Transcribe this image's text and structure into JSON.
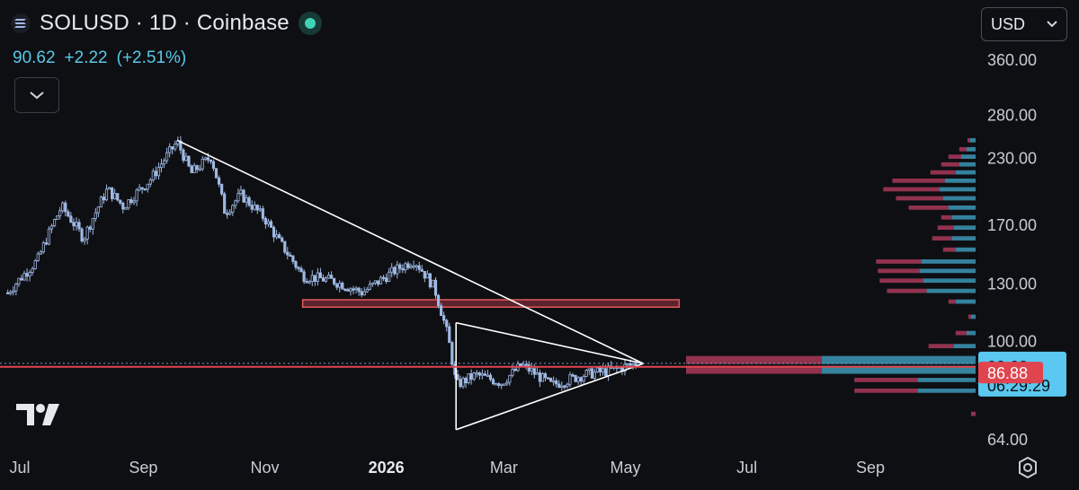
{
  "header": {
    "title": "SOLUSD · 1D · Coinbase",
    "price": "90.62",
    "change": "+2.22",
    "change_pct": "(+2.51%)",
    "currency": "USD"
  },
  "price_badges": {
    "current_price": "90.62",
    "countdown": "06:29:29",
    "level_price": "86.88"
  },
  "colors": {
    "background": "#0e0f13",
    "candle": "#9fb8e3",
    "accent_blue": "#5ac8e8",
    "level_red": "#e0454f",
    "zone_red": "#c0394f",
    "vp_red": "#a8385a",
    "vp_teal": "#3a8fae",
    "trendline": "#ffffff"
  },
  "icons": [
    "solana-icon",
    "status-dot-icon",
    "chevron-down-icon",
    "tradingview-logo-icon",
    "settings-gear-icon"
  ],
  "chart_data": {
    "type": "candlestick",
    "symbol": "SOLUSD",
    "interval": "1D",
    "exchange": "Coinbase",
    "y_scale": "log",
    "ylim": [
      62,
      380
    ],
    "y_ticks": [
      "360.00",
      "280.00",
      "230.00",
      "170.00",
      "130.00",
      "100.00",
      "64.00"
    ],
    "x_ticks": [
      "Jul",
      "Sep",
      "Nov",
      "2026",
      "Mar",
      "May",
      "Jul",
      "Sep"
    ],
    "x_tick_months": [
      "2025-07",
      "2025-09",
      "2025-11",
      "2026-01",
      "2026-03",
      "2026-05",
      "2026-07",
      "2026-09"
    ],
    "price_path": [
      [
        "2025-06-25",
        125
      ],
      [
        "2025-07-10",
        145
      ],
      [
        "2025-07-22",
        185
      ],
      [
        "2025-08-02",
        160
      ],
      [
        "2025-08-14",
        200
      ],
      [
        "2025-08-22",
        185
      ],
      [
        "2025-09-05",
        210
      ],
      [
        "2025-09-18",
        248
      ],
      [
        "2025-09-25",
        215
      ],
      [
        "2025-10-05",
        232
      ],
      [
        "2025-10-12",
        180
      ],
      [
        "2025-10-20",
        195
      ],
      [
        "2025-11-01",
        175
      ],
      [
        "2025-11-08",
        158
      ],
      [
        "2025-11-20",
        135
      ],
      [
        "2025-12-05",
        132
      ],
      [
        "2025-12-20",
        125
      ],
      [
        "2026-01-05",
        138
      ],
      [
        "2026-01-15",
        145
      ],
      [
        "2026-01-25",
        128
      ],
      [
        "2026-02-01",
        102
      ],
      [
        "2026-02-05",
        82
      ],
      [
        "2026-02-15",
        86
      ],
      [
        "2026-02-28",
        83
      ],
      [
        "2026-03-10",
        90
      ],
      [
        "2026-03-25",
        82
      ],
      [
        "2026-04-10",
        86
      ],
      [
        "2026-04-25",
        88
      ],
      [
        "2026-05-07",
        90.62
      ]
    ],
    "trendlines": [
      {
        "name": "descending-resistance",
        "from": [
          "2025-09-18",
          250
        ],
        "to": [
          "2026-05-10",
          90.5
        ]
      },
      {
        "name": "triangle-upper",
        "from": [
          "2026-02-05",
          109
        ],
        "to": [
          "2026-05-10",
          90.5
        ]
      },
      {
        "name": "triangle-lower",
        "from": [
          "2026-02-05",
          67
        ],
        "to": [
          "2026-05-10",
          90.5
        ]
      },
      {
        "name": "triangle-left-edge",
        "from": [
          "2026-02-05",
          109
        ],
        "to": [
          "2026-02-05",
          67
        ]
      }
    ],
    "horizontal_level": 86.88,
    "current_price_line": 90.62,
    "zones": [
      {
        "name": "resistance-zone",
        "from": "2025-11-20",
        "to": "2026-05-28",
        "low": 117,
        "high": 121
      }
    ],
    "volume_profile": {
      "note": "visible range volume profile, sell/buy split",
      "rows": [
        {
          "price": 250,
          "sell": 3,
          "buy": 6
        },
        {
          "price": 240,
          "sell": 8,
          "buy": 10
        },
        {
          "price": 232,
          "sell": 14,
          "buy": 16
        },
        {
          "price": 224,
          "sell": 20,
          "buy": 18
        },
        {
          "price": 216,
          "sell": 28,
          "buy": 22
        },
        {
          "price": 208,
          "sell": 58,
          "buy": 34
        },
        {
          "price": 200,
          "sell": 62,
          "buy": 40
        },
        {
          "price": 192,
          "sell": 52,
          "buy": 36
        },
        {
          "price": 184,
          "sell": 44,
          "buy": 30
        },
        {
          "price": 176,
          "sell": 12,
          "buy": 26
        },
        {
          "price": 168,
          "sell": 18,
          "buy": 24
        },
        {
          "price": 160,
          "sell": 22,
          "buy": 26
        },
        {
          "price": 152,
          "sell": 14,
          "buy": 22
        },
        {
          "price": 144,
          "sell": 50,
          "buy": 60
        },
        {
          "price": 138,
          "sell": 46,
          "buy": 62
        },
        {
          "price": 132,
          "sell": 48,
          "buy": 58
        },
        {
          "price": 126,
          "sell": 44,
          "buy": 54
        },
        {
          "price": 120,
          "sell": 8,
          "buy": 22
        },
        {
          "price": 112,
          "sell": 3,
          "buy": 5
        },
        {
          "price": 104,
          "sell": 12,
          "buy": 10
        },
        {
          "price": 98,
          "sell": 28,
          "buy": 24
        },
        {
          "price": 92,
          "sell": 150,
          "buy": 170
        },
        {
          "price": 88,
          "sell": 150,
          "buy": 170
        },
        {
          "price": 84,
          "sell": 70,
          "buy": 64
        },
        {
          "price": 80,
          "sell": 70,
          "buy": 64
        },
        {
          "price": 72,
          "sell": 5,
          "buy": 0
        }
      ]
    }
  }
}
